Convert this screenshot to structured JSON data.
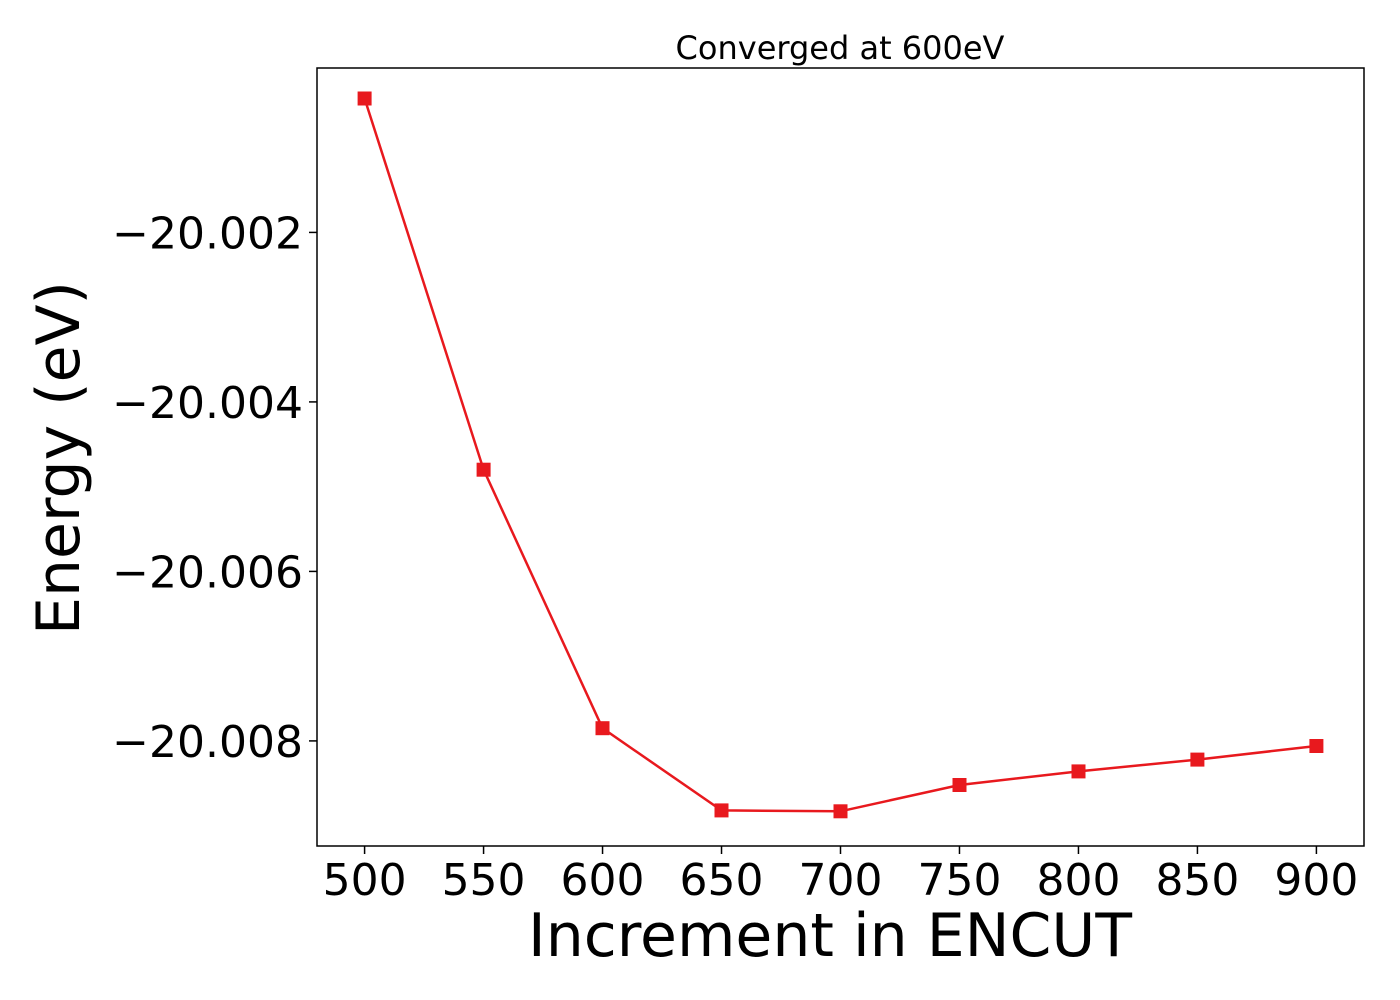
{
  "chart_data": {
    "type": "line",
    "title": "Converged at 600eV",
    "xlabel": "Increment in ENCUT",
    "ylabel": "Energy (eV)",
    "x": [
      500,
      550,
      600,
      650,
      700,
      750,
      800,
      850,
      900
    ],
    "series": [
      {
        "values": [
          -20.00042,
          -20.0048,
          -20.00785,
          -20.00882,
          -20.00883,
          -20.00852,
          -20.00836,
          -20.00822,
          -20.00806
        ],
        "color": "#e8191e",
        "marker": "square"
      }
    ],
    "xticks": [
      500,
      550,
      600,
      650,
      700,
      750,
      800,
      850,
      900
    ],
    "xtick_labels": [
      "500",
      "550",
      "600",
      "650",
      "700",
      "750",
      "800",
      "850",
      "900"
    ],
    "yticks": [
      -20.002,
      -20.004,
      -20.006,
      -20.008
    ],
    "ytick_labels": [
      "−20.002",
      "−20.004",
      "−20.006",
      "−20.008"
    ],
    "xlim": [
      480,
      920
    ],
    "ylim": [
      -20.00924,
      -20.00006
    ],
    "grid": false,
    "legend": "none"
  }
}
